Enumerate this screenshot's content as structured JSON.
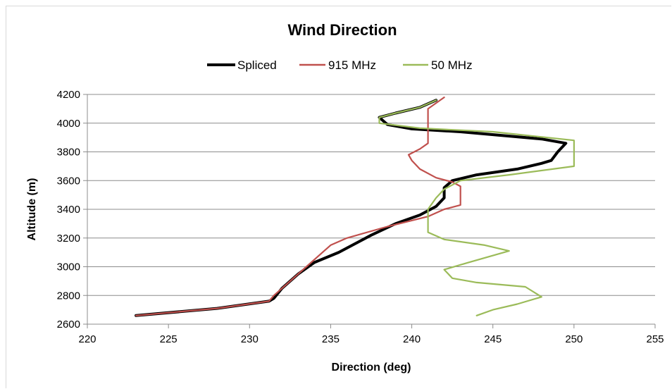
{
  "chart_data": {
    "type": "line",
    "title": "Wind Direction",
    "xlabel": "Direction (deg)",
    "ylabel": "Altitude (m)",
    "xlim": [
      220,
      255
    ],
    "ylim": [
      2600,
      4200
    ],
    "xticks": [
      "220",
      "225",
      "230",
      "235",
      "240",
      "245",
      "250",
      "255"
    ],
    "yticks": [
      "2600",
      "2800",
      "3000",
      "3200",
      "3400",
      "3600",
      "3800",
      "4000",
      "4200"
    ],
    "grid": "horizontal",
    "legend_position": "top",
    "series": [
      {
        "name": "Spliced",
        "color": "#000000",
        "points": [
          [
            223.0,
            2660
          ],
          [
            228.0,
            2710
          ],
          [
            231.2,
            2760
          ],
          [
            231.5,
            2780
          ],
          [
            232.0,
            2850
          ],
          [
            233.0,
            2950
          ],
          [
            234.0,
            3030
          ],
          [
            235.5,
            3100
          ],
          [
            236.5,
            3160
          ],
          [
            237.5,
            3220
          ],
          [
            239.0,
            3300
          ],
          [
            240.5,
            3360
          ],
          [
            241.5,
            3420
          ],
          [
            242.0,
            3480
          ],
          [
            242.0,
            3550
          ],
          [
            242.5,
            3600
          ],
          [
            244.0,
            3640
          ],
          [
            246.5,
            3680
          ],
          [
            248.0,
            3720
          ],
          [
            248.6,
            3740
          ],
          [
            249.0,
            3800
          ],
          [
            249.5,
            3860
          ],
          [
            248.0,
            3890
          ],
          [
            243.0,
            3940
          ],
          [
            240.0,
            3960
          ],
          [
            238.5,
            3990
          ],
          [
            238.0,
            4040
          ],
          [
            239.0,
            4070
          ],
          [
            240.5,
            4110
          ],
          [
            241.5,
            4160
          ]
        ]
      },
      {
        "name": "915 MHz",
        "color": "#c0504d",
        "points": [
          [
            223.0,
            2660
          ],
          [
            228.0,
            2710
          ],
          [
            231.2,
            2760
          ],
          [
            231.5,
            2800
          ],
          [
            232.5,
            2900
          ],
          [
            233.5,
            3000
          ],
          [
            234.5,
            3100
          ],
          [
            235.0,
            3150
          ],
          [
            236.0,
            3200
          ],
          [
            238.5,
            3280
          ],
          [
            241.0,
            3350
          ],
          [
            242.0,
            3400
          ],
          [
            243.0,
            3430
          ],
          [
            243.0,
            3500
          ],
          [
            243.0,
            3560
          ],
          [
            242.5,
            3590
          ],
          [
            241.5,
            3620
          ],
          [
            240.5,
            3680
          ],
          [
            240.0,
            3740
          ],
          [
            239.8,
            3780
          ],
          [
            240.5,
            3820
          ],
          [
            241.0,
            3860
          ],
          [
            241.0,
            3960
          ],
          [
            241.0,
            4000
          ],
          [
            241.0,
            4100
          ],
          [
            242.0,
            4180
          ]
        ]
      },
      {
        "name": "50 MHz",
        "color": "#9bbb59",
        "points": [
          [
            244.0,
            2660
          ],
          [
            245.0,
            2700
          ],
          [
            246.5,
            2740
          ],
          [
            248.0,
            2790
          ],
          [
            247.0,
            2860
          ],
          [
            244.0,
            2890
          ],
          [
            242.5,
            2920
          ],
          [
            242.0,
            2980
          ],
          [
            243.5,
            3030
          ],
          [
            246.0,
            3110
          ],
          [
            244.5,
            3150
          ],
          [
            242.0,
            3190
          ],
          [
            241.0,
            3240
          ],
          [
            241.0,
            3320
          ],
          [
            241.0,
            3400
          ],
          [
            241.5,
            3480
          ],
          [
            242.0,
            3540
          ],
          [
            243.0,
            3600
          ],
          [
            246.0,
            3640
          ],
          [
            250.0,
            3700
          ],
          [
            250.0,
            3800
          ],
          [
            250.0,
            3880
          ],
          [
            245.0,
            3940
          ],
          [
            240.5,
            3965
          ],
          [
            238.0,
            4000
          ],
          [
            238.0,
            4040
          ],
          [
            239.0,
            4070
          ],
          [
            240.5,
            4110
          ],
          [
            241.5,
            4160
          ]
        ]
      }
    ]
  }
}
